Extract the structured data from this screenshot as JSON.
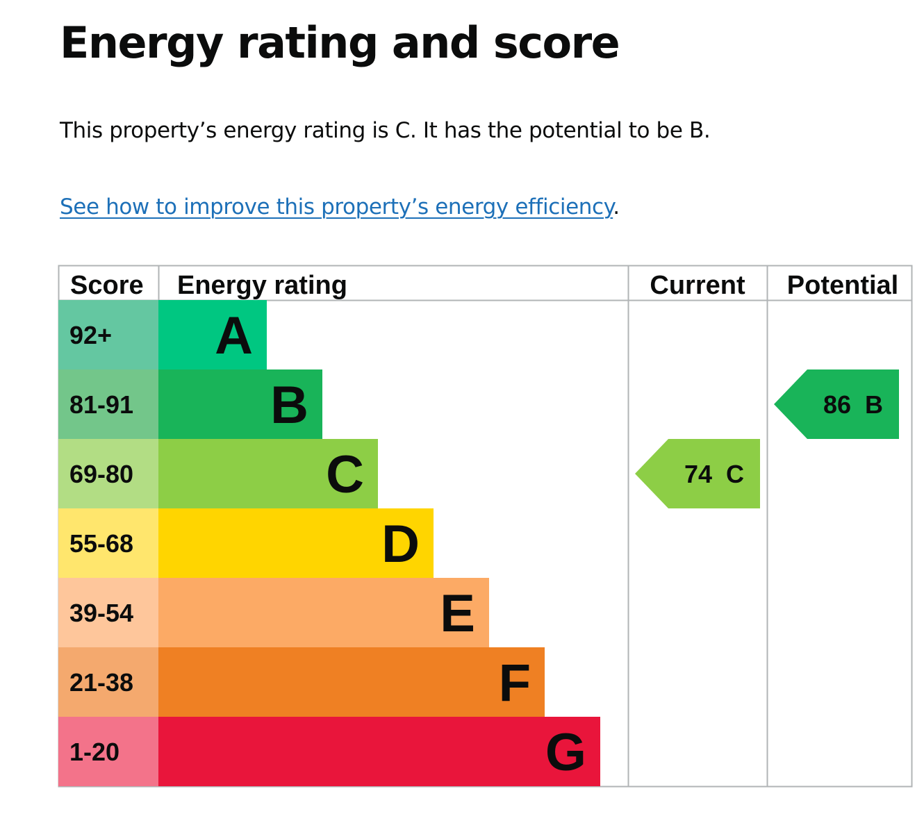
{
  "page": {
    "title": "Energy rating and score",
    "summary": "This property’s energy rating is C. It has the potential to be B.",
    "link_text": "See how to improve this property’s energy efficiency",
    "link_suffix": "."
  },
  "chart_data": {
    "type": "bar",
    "headers": {
      "score": "Score",
      "rating": "Energy rating",
      "current": "Current",
      "potential": "Potential"
    },
    "bands": [
      {
        "rating": "A",
        "score_range": "92+",
        "bar_color": "#00c781",
        "score_color": "#64c7a1"
      },
      {
        "rating": "B",
        "score_range": "81-91",
        "bar_color": "#19b459",
        "score_color": "#73c68a"
      },
      {
        "rating": "C",
        "score_range": "69-80",
        "bar_color": "#8dce46",
        "score_color": "#b2dd84"
      },
      {
        "rating": "D",
        "score_range": "55-68",
        "bar_color": "#ffd500",
        "score_color": "#ffe66d"
      },
      {
        "rating": "E",
        "score_range": "39-54",
        "bar_color": "#fcaa65",
        "score_color": "#fec69b"
      },
      {
        "rating": "F",
        "score_range": "21-38",
        "bar_color": "#ef8023",
        "score_color": "#f4a96e"
      },
      {
        "rating": "G",
        "score_range": "1-20",
        "bar_color": "#e9153b",
        "score_color": "#f3738a"
      }
    ],
    "current": {
      "score": 74,
      "rating": "C",
      "label": "74  C",
      "color": "#8dce46"
    },
    "potential": {
      "score": 86,
      "rating": "B",
      "label": "86  B",
      "color": "#19b459"
    }
  }
}
